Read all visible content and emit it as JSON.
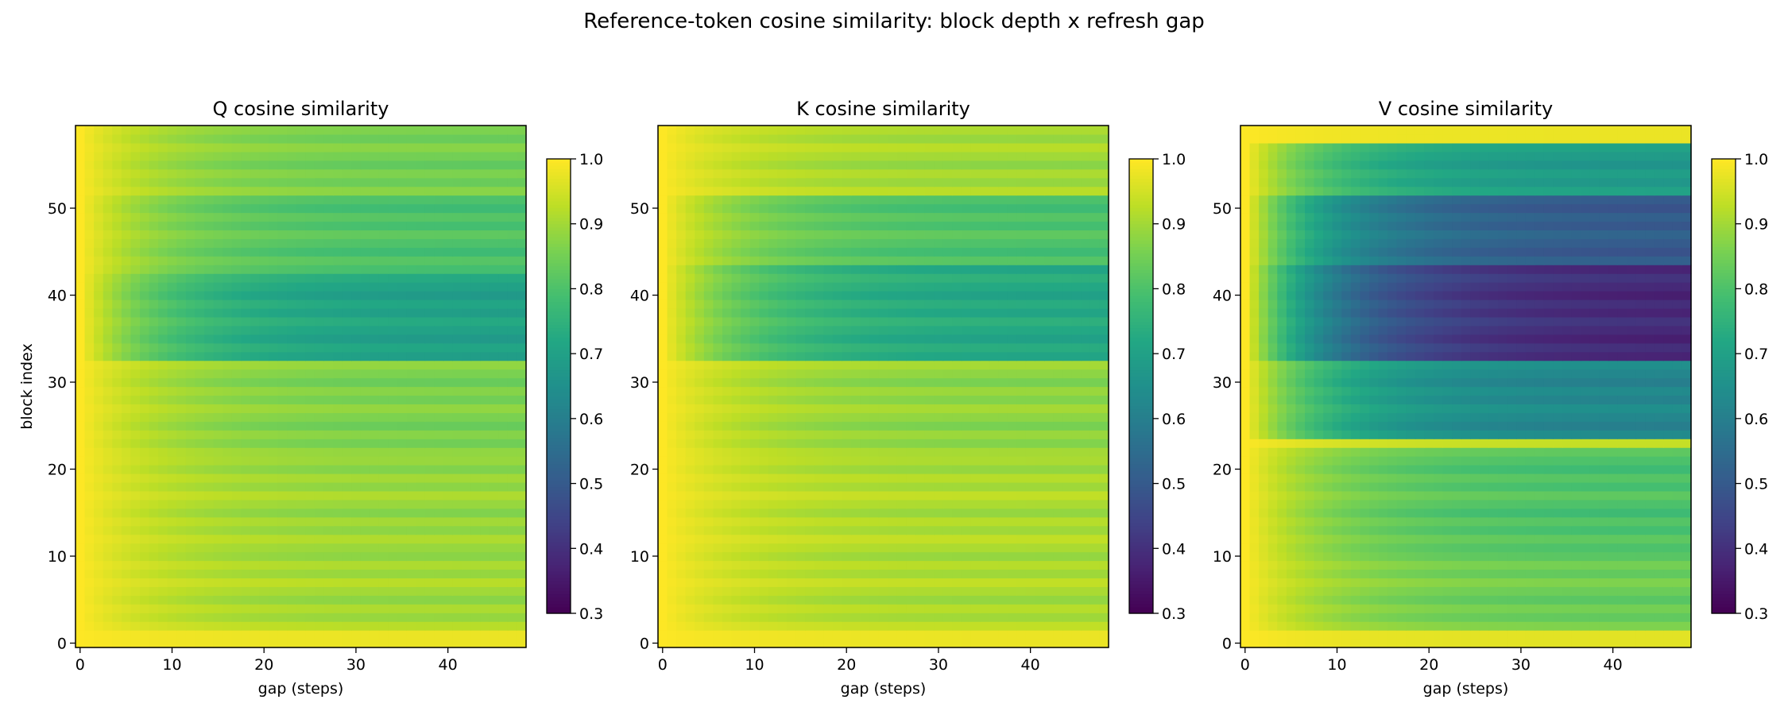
{
  "figure": {
    "title": "Reference-token cosine similarity: block depth x refresh gap"
  },
  "chart_data": [
    {
      "type": "heatmap",
      "title": "Q cosine similarity",
      "xlabel": "gap (steps)",
      "ylabel": "block index",
      "x_range": [
        0,
        48
      ],
      "y_range": [
        0,
        59
      ],
      "xticks": [
        0,
        10,
        20,
        30,
        40
      ],
      "yticks": [
        0,
        10,
        20,
        30,
        40,
        50
      ],
      "colorbar": {
        "min": 0.3,
        "max": 1.0,
        "ticks": [
          "0.3",
          "0.4",
          "0.5",
          "0.6",
          "0.7",
          "0.8",
          "0.9",
          "1.0"
        ],
        "colormap": "viridis"
      },
      "min_similarity_by_band": [
        {
          "blocks": "0-1",
          "value": 0.98
        },
        {
          "blocks": "2-10",
          "value": 0.9
        },
        {
          "blocks": "11-21",
          "value": 0.89
        },
        {
          "blocks": "22-32",
          "value": 0.86
        },
        {
          "blocks": "33-42",
          "value": 0.7
        },
        {
          "blocks": "43-51",
          "value": 0.8
        },
        {
          "blocks": "52-59",
          "value": 0.85
        }
      ]
    },
    {
      "type": "heatmap",
      "title": "K cosine similarity",
      "xlabel": "gap (steps)",
      "ylabel": "",
      "x_range": [
        0,
        48
      ],
      "y_range": [
        0,
        59
      ],
      "xticks": [
        0,
        10,
        20,
        30,
        40
      ],
      "yticks": [
        0,
        10,
        20,
        30,
        40,
        50
      ],
      "colorbar": {
        "min": 0.3,
        "max": 1.0,
        "ticks": [
          "0.3",
          "0.4",
          "0.5",
          "0.6",
          "0.7",
          "0.8",
          "0.9",
          "1.0"
        ],
        "colormap": "viridis"
      },
      "min_similarity_by_band": [
        {
          "blocks": "0-1",
          "value": 0.98
        },
        {
          "blocks": "2-10",
          "value": 0.91
        },
        {
          "blocks": "11-21",
          "value": 0.91
        },
        {
          "blocks": "22-32",
          "value": 0.88
        },
        {
          "blocks": "33-43",
          "value": 0.72
        },
        {
          "blocks": "44-51",
          "value": 0.8
        },
        {
          "blocks": "52-59",
          "value": 0.9
        }
      ]
    },
    {
      "type": "heatmap",
      "title": "V cosine similarity",
      "xlabel": "gap (steps)",
      "ylabel": "",
      "x_range": [
        0,
        48
      ],
      "y_range": [
        0,
        59
      ],
      "xticks": [
        0,
        10,
        20,
        30,
        40
      ],
      "yticks": [
        0,
        10,
        20,
        30,
        40,
        50
      ],
      "colorbar": {
        "min": 0.3,
        "max": 1.0,
        "ticks": [
          "0.3",
          "0.4",
          "0.5",
          "0.6",
          "0.7",
          "0.8",
          "0.9",
          "1.0"
        ],
        "colormap": "viridis"
      },
      "min_similarity_by_band": [
        {
          "blocks": "0-1",
          "value": 0.97
        },
        {
          "blocks": "2-10",
          "value": 0.84
        },
        {
          "blocks": "11-22",
          "value": 0.8
        },
        {
          "blocks": "23",
          "value": 0.95
        },
        {
          "blocks": "24-32",
          "value": 0.62
        },
        {
          "blocks": "33-43",
          "value": 0.38
        },
        {
          "blocks": "44-51",
          "value": 0.5
        },
        {
          "blocks": "52-57",
          "value": 0.68
        },
        {
          "blocks": "58-59",
          "value": 0.98
        }
      ]
    }
  ]
}
